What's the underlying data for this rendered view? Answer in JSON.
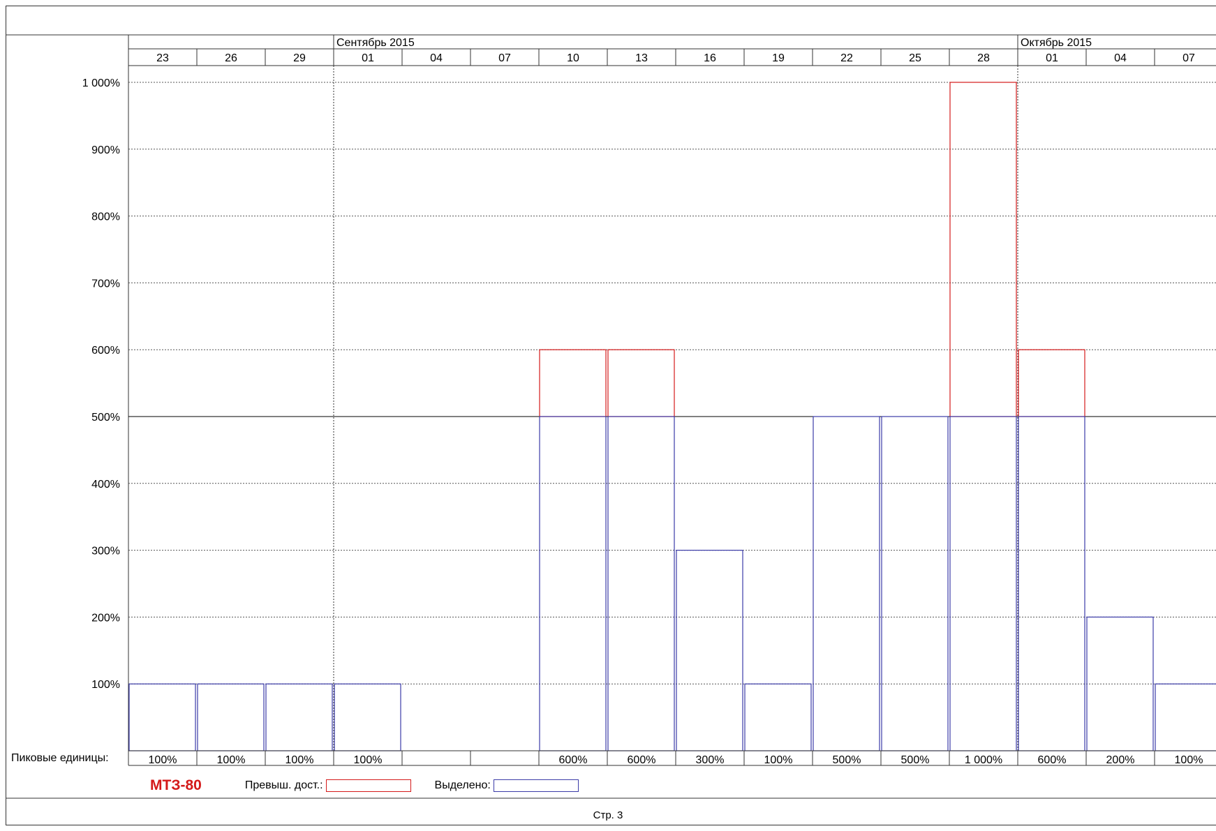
{
  "chart_data": {
    "type": "bar",
    "categories": [
      "23",
      "26",
      "29",
      "01",
      "04",
      "07",
      "10",
      "13",
      "16",
      "19",
      "22",
      "25",
      "28",
      "01",
      "04",
      "07"
    ],
    "months": [
      {
        "label": "Сентябрь 2015",
        "start_index": 3
      },
      {
        "label": "Октябрь 2015",
        "start_index": 13
      }
    ],
    "series": [
      {
        "name": "Превыш. дост.",
        "color": "#d41a1a",
        "values": [
          null,
          null,
          null,
          null,
          null,
          null,
          600,
          600,
          null,
          null,
          null,
          null,
          1000,
          600,
          null,
          null
        ]
      },
      {
        "name": "Выделено",
        "color": "#3b3ba8",
        "values": [
          100,
          100,
          100,
          100,
          0,
          0,
          500,
          500,
          300,
          100,
          500,
          500,
          500,
          500,
          200,
          100
        ]
      }
    ],
    "y_ticks": [
      "100%",
      "200%",
      "300%",
      "400%",
      "500%",
      "600%",
      "700%",
      "800%",
      "900%",
      "1 000%"
    ],
    "ylim": [
      0,
      1000
    ],
    "max_units_line": 500,
    "grid": true,
    "peak_row_label": "Пиковые единицы:",
    "peak_values": [
      "100%",
      "100%",
      "100%",
      "100%",
      "",
      "",
      "600%",
      "600%",
      "300%",
      "100%",
      "500%",
      "500%",
      "1 000%",
      "600%",
      "200%",
      "100%"
    ]
  },
  "legend": {
    "resource": "МТЗ-80",
    "over_label": "Превыш. дост.:",
    "alloc_label": "Выделено:"
  },
  "footer": {
    "page": "Стр. 3"
  }
}
